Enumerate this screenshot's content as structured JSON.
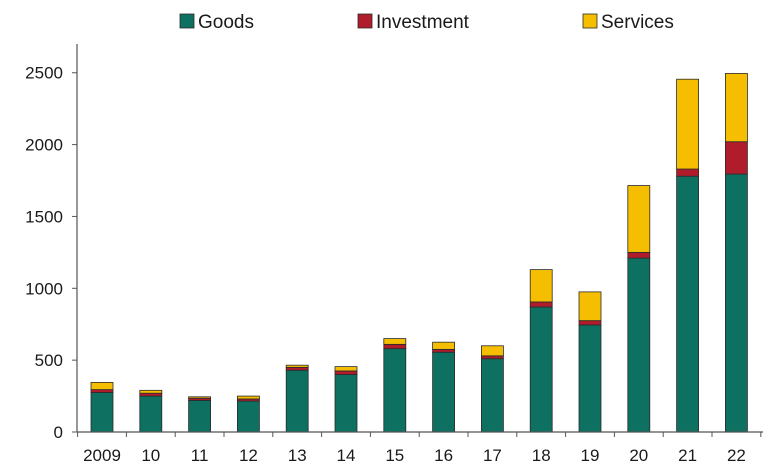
{
  "chart_data": {
    "type": "bar",
    "stacked": true,
    "categories": [
      "2009",
      "10",
      "11",
      "12",
      "13",
      "14",
      "15",
      "16",
      "17",
      "18",
      "19",
      "20",
      "21",
      "22"
    ],
    "series": [
      {
        "name": "Goods",
        "color": "#0d7060",
        "values": [
          275,
          250,
          220,
          215,
          430,
          400,
          580,
          555,
          510,
          870,
          745,
          1210,
          1780,
          1795
        ]
      },
      {
        "name": "Investment",
        "color": "#b01c2c",
        "values": [
          20,
          20,
          15,
          15,
          20,
          25,
          30,
          20,
          20,
          35,
          30,
          40,
          50,
          225
        ]
      },
      {
        "name": "Services",
        "color": "#f5be00",
        "values": [
          50,
          20,
          10,
          20,
          15,
          30,
          40,
          50,
          70,
          225,
          200,
          465,
          625,
          475
        ]
      }
    ],
    "ylim": [
      0,
      2700
    ],
    "yticks": [
      0,
      500,
      1000,
      1500,
      2000,
      2500
    ],
    "grid": false,
    "legend": "top-center",
    "title": "",
    "xlabel": "",
    "ylabel": ""
  }
}
